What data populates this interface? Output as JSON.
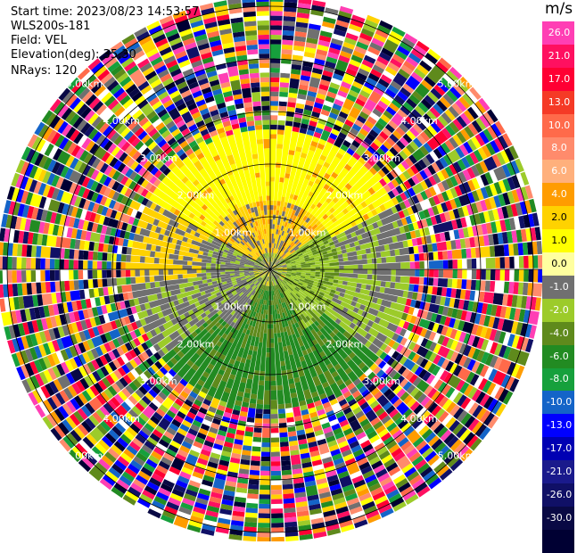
{
  "info": {
    "start_time": "Start time: 2023/08/23 14:53:57",
    "station": "WLS200s-181",
    "field": "Field: VEL",
    "elevation": "Elevation(deg): 35.30",
    "nrays": "NRays: 120"
  },
  "colorbar": {
    "unit": "m/s",
    "ticks": [
      "26.0",
      "21.0",
      "17.0",
      "13.0",
      "10.0",
      "8.0",
      "6.0",
      "4.0",
      "2.0",
      "1.0",
      "0.0",
      "-1.0",
      "-2.0",
      "-4.0",
      "-6.0",
      "-8.0",
      "-10.0",
      "-13.0",
      "-17.0",
      "-21.0",
      "-26.0",
      "-30.0"
    ],
    "colors": [
      "#ff3fb4",
      "#ff1060",
      "#ff0033",
      "#f53a26",
      "#ff6a4a",
      "#ff8b6c",
      "#ffb07c",
      "#ff9c00",
      "#ffd200",
      "#ffff00",
      "#ffff9f",
      "#707070",
      "#9ccb2a",
      "#5f8a1c",
      "#228b22",
      "#16a03c",
      "#1464c8",
      "#0000ff",
      "#0000b3",
      "#1a1a8c",
      "#101066",
      "#090944",
      "#000033"
    ]
  },
  "chart_data": {
    "type": "heatmap",
    "title": "",
    "field": "VEL",
    "units": "m/s",
    "nrays": 120,
    "elevation_deg": 35.3,
    "range_rings_km": [
      1.0,
      2.0,
      3.0,
      4.0,
      5.0
    ],
    "ring_labels": {
      "1": "1.00km",
      "2": "2.00km",
      "3": "3.00km",
      "4": "4.00km",
      "5": "5.00km"
    },
    "value_scale": [
      -30.0,
      26.0
    ],
    "description_regions": [
      {
        "range_km": [
          0,
          1.2
        ],
        "dominant_vel": "mixed -2 to 2"
      },
      {
        "range_km": [
          1.2,
          2.6
        ],
        "dominant_vel": "2 (north), -6 (south)"
      },
      {
        "range_km": [
          2.6,
          5.2
        ],
        "dominant_vel": "noise"
      }
    ]
  }
}
